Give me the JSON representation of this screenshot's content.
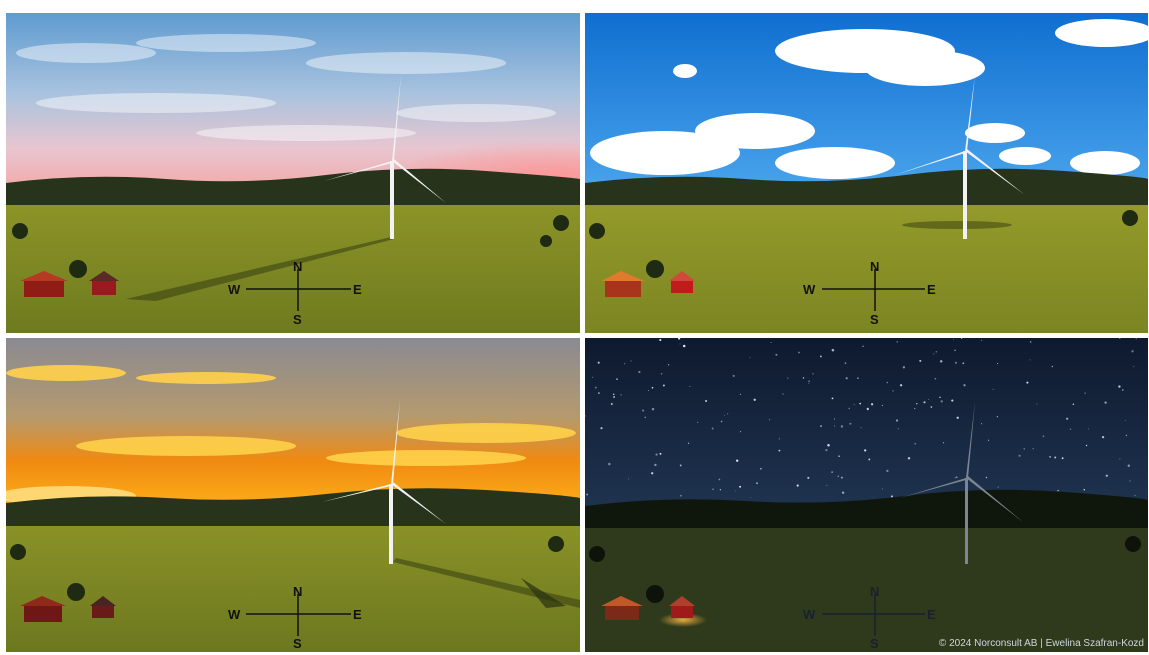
{
  "panels": [
    {
      "name": "sunrise-panel",
      "sky": "pink-dawn"
    },
    {
      "name": "midday-panel",
      "sky": "blue-clouds"
    },
    {
      "name": "sunset-panel",
      "sky": "orange-sunset"
    },
    {
      "name": "night-panel",
      "sky": "starry-night"
    }
  ],
  "compass": {
    "north": "N",
    "south": "S",
    "east": "E",
    "west": "W"
  },
  "credit": "© 2024 Norconsult AB | Ewelina Szafran-Kozd",
  "colors": {
    "grass_day": "#7f8a22",
    "grass_night": "#2f3a1c",
    "tree_line": "#27331a",
    "barn": "#8f1d16",
    "turbine": "#f2f2f2"
  }
}
